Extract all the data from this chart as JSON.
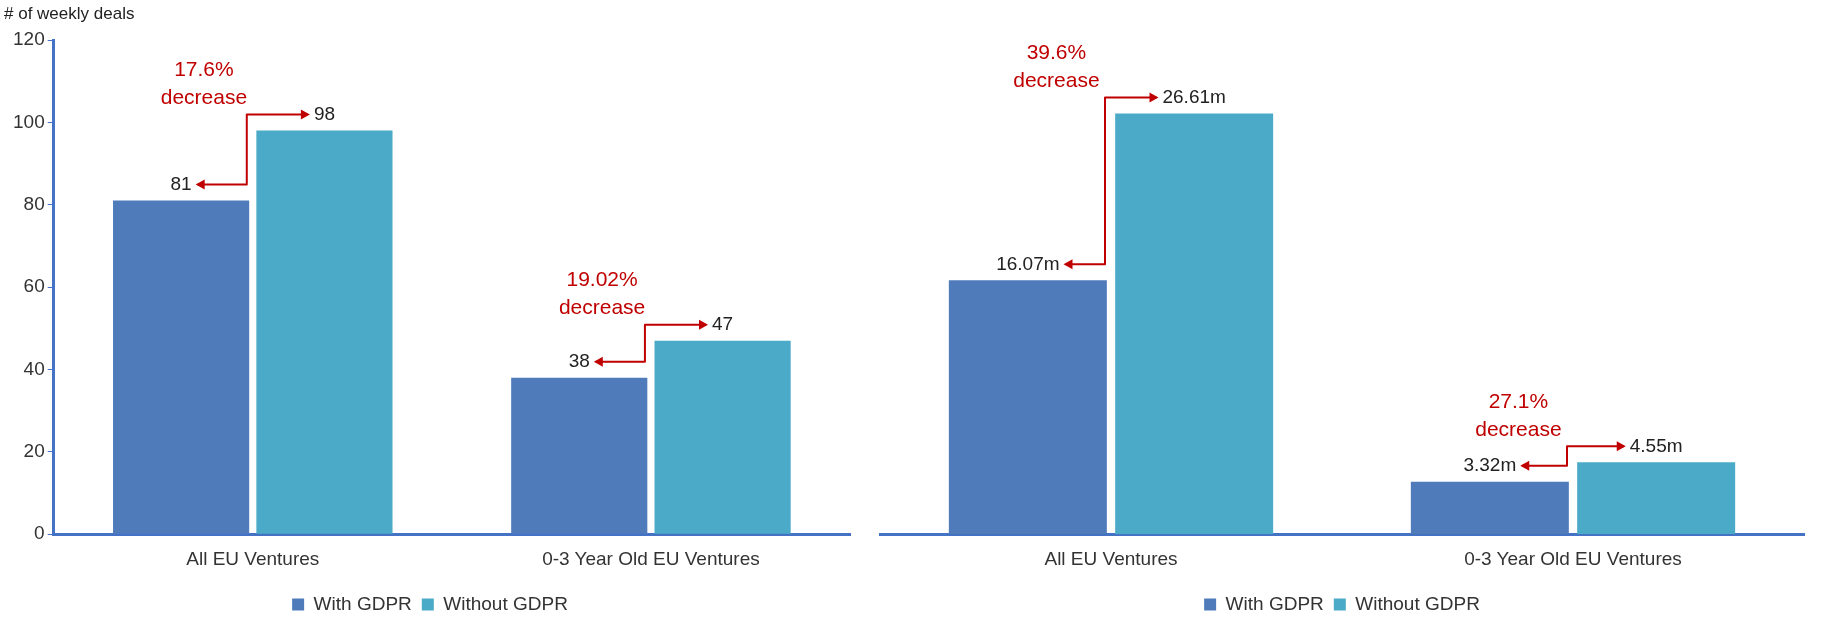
{
  "chart_data": [
    {
      "type": "bar",
      "ylabel": "# of weekly deals",
      "categories": [
        "All EU Ventures",
        "0-3 Year Old EU Ventures"
      ],
      "series": [
        {
          "name": "With GDPR",
          "color": "#4f7bbb",
          "values": [
            81,
            38
          ]
        },
        {
          "name": "Without GDPR",
          "color": "#4aaac7",
          "values": [
            98,
            47
          ]
        }
      ],
      "ylim": [
        0,
        120
      ],
      "yticks": [
        0,
        20,
        40,
        60,
        80,
        100,
        120
      ],
      "grid": false,
      "legend": "bottom",
      "data_labels": true,
      "annotations": [
        "17.6% decrease",
        "19.02% decrease"
      ]
    },
    {
      "type": "bar",
      "categories": [
        "All EU Ventures",
        "0-3 Year Old EU Ventures"
      ],
      "series": [
        {
          "name": "With GDPR",
          "color": "#4f7bbb",
          "values": [
            16.07,
            3.32
          ],
          "value_labels": [
            "16.07m",
            "3.32m"
          ]
        },
        {
          "name": "Without GDPR",
          "color": "#4aaac7",
          "values": [
            26.61,
            4.55
          ],
          "value_labels": [
            "26.61m",
            "4.55m"
          ]
        }
      ],
      "grid": false,
      "legend": "bottom",
      "tick_labels": "x",
      "annotations": [
        "39.6% decrease",
        "27.1% decrease"
      ]
    }
  ]
}
